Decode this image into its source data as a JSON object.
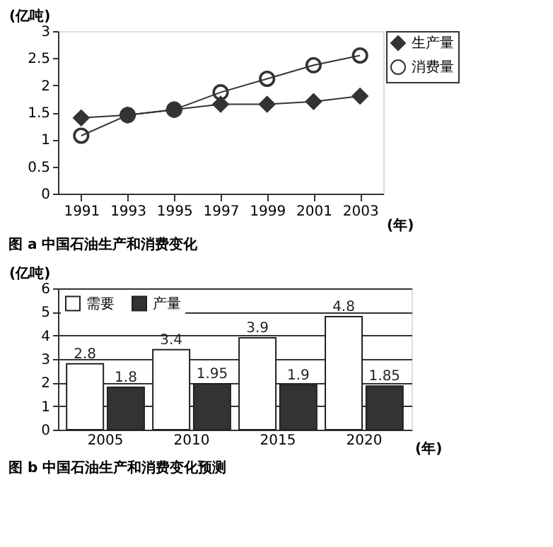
{
  "chart_data": [
    {
      "type": "line",
      "title": "图 a 中国石油生产和消费变化",
      "xlabel": "(年)",
      "ylabel": "(亿吨)",
      "categories": [
        "1991",
        "1993",
        "1995",
        "1997",
        "1999",
        "2001",
        "2003"
      ],
      "ylim": [
        0,
        3
      ],
      "yticks": [
        0,
        0.5,
        1,
        1.5,
        2,
        2.5,
        3
      ],
      "grid": false,
      "legend": "right",
      "series": [
        {
          "name": "生产量",
          "color": "#333333",
          "marker": "diamond",
          "values": [
            1.4,
            1.45,
            1.55,
            1.65,
            1.65,
            1.7,
            1.8
          ]
        },
        {
          "name": "消费量",
          "color": "#333333",
          "marker": "circle",
          "values": [
            1.07,
            1.45,
            1.55,
            1.87,
            2.12,
            2.37,
            2.55
          ]
        }
      ]
    },
    {
      "type": "bar",
      "title": "图 b 中国石油生产和消费变化预测",
      "xlabel": "(年)",
      "ylabel": "(亿吨)",
      "categories": [
        "2005",
        "2010",
        "2015",
        "2020"
      ],
      "ylim": [
        0,
        6
      ],
      "yticks": [
        0,
        1,
        2,
        3,
        4,
        5,
        6
      ],
      "grid": "y",
      "legend": "top left",
      "data_labels": true,
      "series": [
        {
          "name": "需要",
          "color": "#ffffff",
          "values": [
            2.8,
            3.4,
            3.9,
            4.8
          ]
        },
        {
          "name": "产量",
          "color": "#333333",
          "values": [
            1.8,
            1.95,
            1.9,
            1.85
          ]
        }
      ]
    }
  ]
}
